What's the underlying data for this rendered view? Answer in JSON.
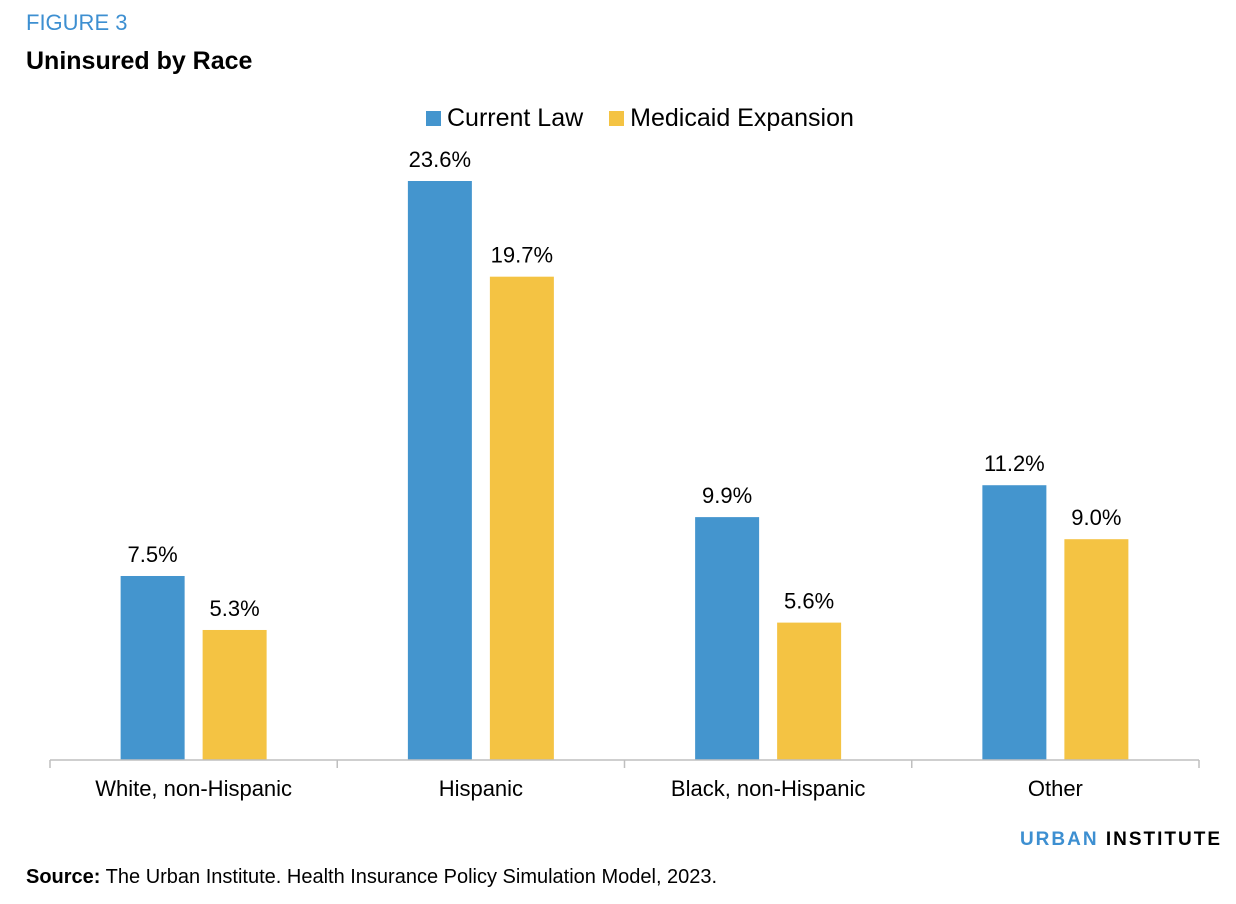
{
  "figure": {
    "label": "FIGURE 3",
    "title": "Uninsured by Race"
  },
  "legend": {
    "items": [
      "Current Law",
      "Medicaid Expansion"
    ]
  },
  "watermark": {
    "part1": "URBAN",
    "part2": "INSTITUTE"
  },
  "source": {
    "label": "Source:",
    "text": "The Urban Institute. Health Insurance Policy Simulation Model, 2023."
  },
  "colors": {
    "current_law": "#4495ce",
    "medicaid_expansion": "#f4c343",
    "accent": "#3d8fd1"
  },
  "chart_data": {
    "type": "bar",
    "title": "Uninsured by Race",
    "categories": [
      "White, non-Hispanic",
      "Hispanic",
      "Black, non-Hispanic",
      "Other"
    ],
    "series": [
      {
        "name": "Current Law",
        "values": [
          7.5,
          23.6,
          9.9,
          11.2
        ],
        "labels": [
          "7.5%",
          "23.6%",
          "9.9%",
          "11.2%"
        ]
      },
      {
        "name": "Medicaid Expansion",
        "values": [
          5.3,
          19.7,
          5.6,
          9.0
        ],
        "labels": [
          "5.3%",
          "19.7%",
          "5.6%",
          "9.0%"
        ]
      }
    ],
    "xlabel": "",
    "ylabel": "",
    "ylim": [
      0,
      23.6
    ],
    "grid": false,
    "legend_position": "top-center"
  }
}
